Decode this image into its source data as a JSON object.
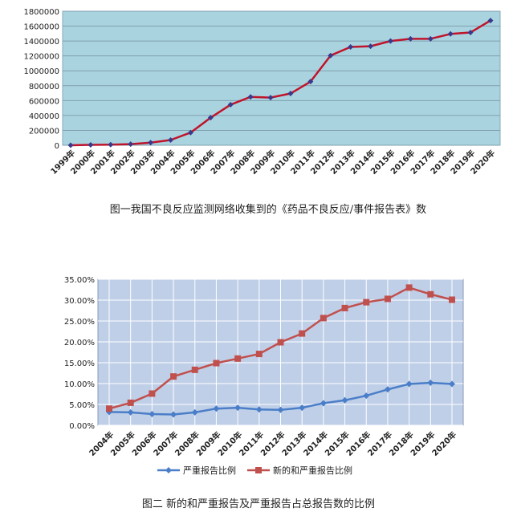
{
  "chart_data": [
    {
      "type": "line",
      "caption": "图一我国不良反应监测网络收集到的《药品不良反应/事件报告表》数",
      "categories": [
        "1999年",
        "2000年",
        "2001年",
        "2002年",
        "2003年",
        "2004年",
        "2005年",
        "2006年",
        "2007年",
        "2008年",
        "2009年",
        "2010年",
        "2011年",
        "2012年",
        "2013年",
        "2014年",
        "2015年",
        "2016年",
        "2017年",
        "2018年",
        "2019年",
        "2020年"
      ],
      "y_ticks": [
        "0",
        "200000",
        "400000",
        "600000",
        "800000",
        "1000000",
        "1200000",
        "1400000",
        "1600000",
        "1800000"
      ],
      "ylim": [
        0,
        1800000
      ],
      "series": [
        {
          "values": [
            0,
            5000,
            8000,
            15000,
            35000,
            70000,
            170000,
            370000,
            545000,
            650000,
            640000,
            695000,
            855000,
            1205000,
            1320000,
            1330000,
            1400000,
            1430000,
            1430000,
            1495000,
            1515000,
            1675000
          ],
          "color": "#c0142a",
          "marker_color": "#3a3a8c"
        }
      ],
      "plot_background": "#aad3e0",
      "grid": true
    },
    {
      "type": "line",
      "caption": "图二 新的和严重报告及严重报告占总报告数的比例",
      "categories": [
        "2004年",
        "2005年",
        "2006年",
        "2007年",
        "2008年",
        "2009年",
        "2010年",
        "2011年",
        "2012年",
        "2013年",
        "2014年",
        "2015年",
        "2016年",
        "2017年",
        "2018年",
        "2019年",
        "2020年"
      ],
      "y_ticks": [
        "0.00%",
        "5.00%",
        "10.00%",
        "15.00%",
        "20.00%",
        "25.00%",
        "30.00%",
        "35.00%"
      ],
      "ylim": [
        0,
        35
      ],
      "series": [
        {
          "name": "严重报告比例",
          "values": [
            3.2,
            3.1,
            2.7,
            2.6,
            3.1,
            4.0,
            4.2,
            3.8,
            3.7,
            4.2,
            5.3,
            6.0,
            7.1,
            8.6,
            9.9,
            10.2,
            9.9
          ],
          "color": "#4a7ec8",
          "marker": "diamond"
        },
        {
          "name": "新的和严重报告比例",
          "values": [
            4.0,
            5.4,
            7.6,
            11.7,
            13.3,
            14.9,
            16.0,
            17.1,
            19.9,
            22.0,
            25.7,
            28.1,
            29.5,
            30.3,
            33.0,
            31.4,
            30.1
          ],
          "color": "#c0504d",
          "marker": "square"
        }
      ],
      "plot_background": "#bfcfe8",
      "grid": true,
      "legend_position": "bottom"
    }
  ]
}
